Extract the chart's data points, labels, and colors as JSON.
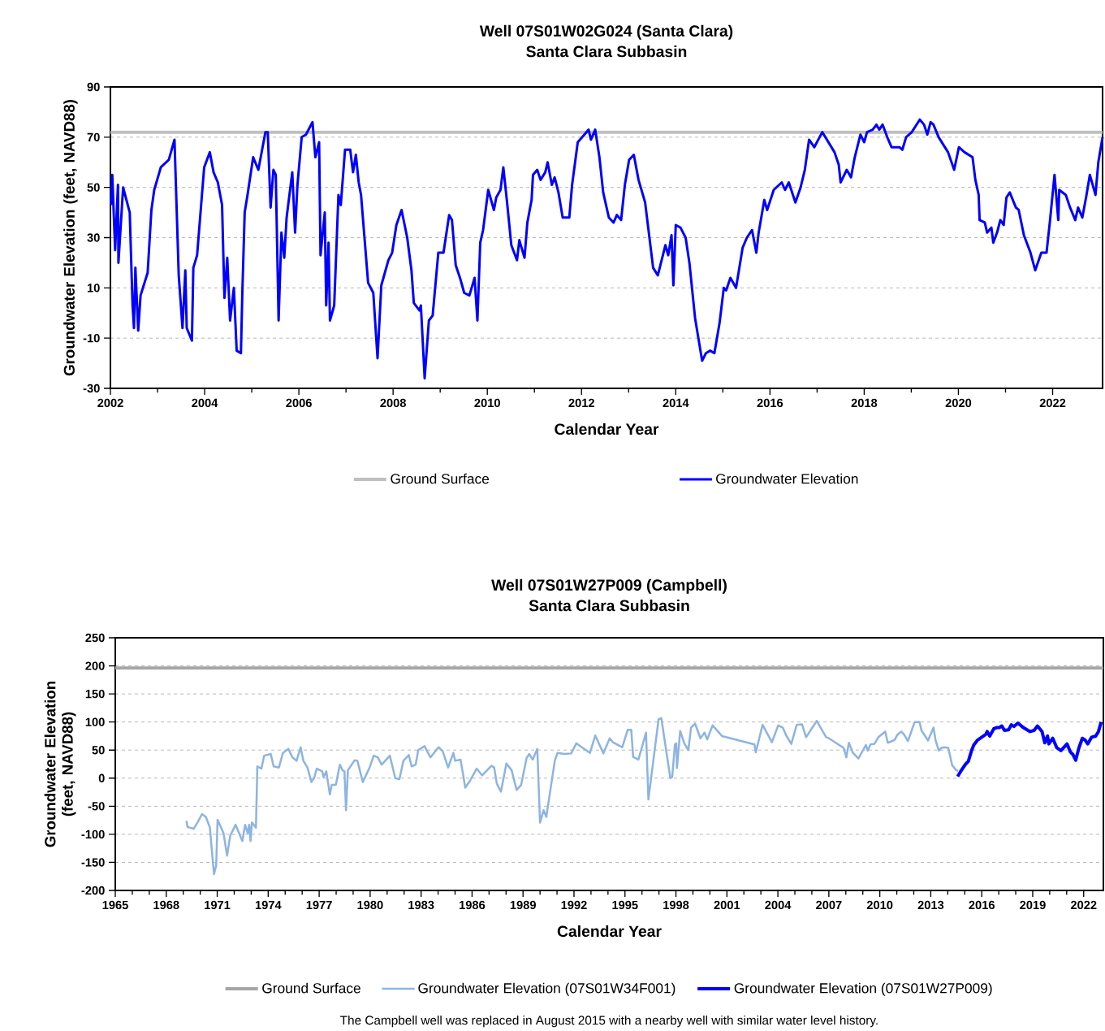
{
  "chart_data": [
    {
      "type": "line",
      "title": "Well 07S01W02G024 (Santa Clara)",
      "subtitle": "Santa Clara Subbasin",
      "xlabel": "Calendar Year",
      "ylabel": "Groundwater Elevation (feet, NAVD88)",
      "xlim": [
        2002,
        2023.06
      ],
      "ylim": [
        -30,
        90
      ],
      "xticks": [
        2002,
        2004,
        2006,
        2008,
        2010,
        2012,
        2014,
        2016,
        2018,
        2020,
        2022
      ],
      "yticks": [
        -30,
        -10,
        10,
        30,
        50,
        70,
        90
      ],
      "grid": "y",
      "legend": "bottom",
      "series": [
        {
          "name": "Ground Surface",
          "color": "#bfbfbf",
          "x": [
            2002,
            2023.06
          ],
          "values": [
            72,
            72
          ]
        },
        {
          "name": "Groundwater Elevation",
          "color": "#0000ff",
          "x": [
            2002.01,
            2002.04,
            2002.1,
            2002.16,
            2002.17,
            2002.27,
            2002.41,
            2002.47,
            2002.5,
            2002.53,
            2002.59,
            2002.64,
            2002.79,
            2002.87,
            2002.93,
            2003.07,
            2003.24,
            2003.36,
            2003.45,
            2003.53,
            2003.59,
            2003.62,
            2003.73,
            2003.76,
            2003.84,
            2003.99,
            2004.11,
            2004.19,
            2004.28,
            2004.37,
            2004.42,
            2004.48,
            2004.54,
            2004.62,
            2004.68,
            2004.77,
            2004.8,
            2004.85,
            2004.91,
            2005.03,
            2005.14,
            2005.23,
            2005.29,
            2005.34,
            2005.4,
            2005.46,
            2005.51,
            2005.57,
            2005.63,
            2005.69,
            2005.74,
            2005.86,
            2005.92,
            2005.97,
            2006.06,
            2006.15,
            2006.29,
            2006.35,
            2006.43,
            2006.46,
            2006.55,
            2006.58,
            2006.63,
            2006.66,
            2006.75,
            2006.84,
            2006.89,
            2006.98,
            2007.09,
            2007.15,
            2007.21,
            2007.27,
            2007.32,
            2007.47,
            2007.58,
            2007.67,
            2007.75,
            2007.9,
            2007.98,
            2008.07,
            2008.18,
            2008.3,
            2008.39,
            2008.44,
            2008.56,
            2008.59,
            2008.67,
            2008.76,
            2008.84,
            2008.96,
            2009.07,
            2009.19,
            2009.25,
            2009.33,
            2009.42,
            2009.51,
            2009.62,
            2009.73,
            2009.79,
            2009.85,
            2009.91,
            2010.02,
            2010.14,
            2010.19,
            2010.28,
            2010.34,
            2010.42,
            2010.51,
            2010.63,
            2010.68,
            2010.79,
            2010.85,
            2010.94,
            2010.97,
            2011.06,
            2011.13,
            2011.23,
            2011.28,
            2011.37,
            2011.43,
            2011.51,
            2011.6,
            2011.74,
            2011.8,
            2011.92,
            2012.06,
            2012.15,
            2012.2,
            2012.29,
            2012.38,
            2012.46,
            2012.58,
            2012.68,
            2012.75,
            2012.84,
            2012.92,
            2013.01,
            2013.11,
            2013.21,
            2013.35,
            2013.52,
            2013.62,
            2013.78,
            2013.84,
            2013.91,
            2013.95,
            2014.0,
            2014.1,
            2014.21,
            2014.29,
            2014.41,
            2014.56,
            2014.64,
            2014.73,
            2014.82,
            2014.93,
            2015.02,
            2015.07,
            2015.16,
            2015.28,
            2015.42,
            2015.51,
            2015.62,
            2015.71,
            2015.76,
            2015.88,
            2015.94,
            2016.08,
            2016.25,
            2016.32,
            2016.4,
            2016.54,
            2016.65,
            2016.74,
            2016.83,
            2016.94,
            2017.11,
            2017.37,
            2017.46,
            2017.5,
            2017.63,
            2017.72,
            2017.8,
            2017.92,
            2018.0,
            2018.06,
            2018.18,
            2018.26,
            2018.32,
            2018.39,
            2018.49,
            2018.58,
            2018.75,
            2018.81,
            2018.89,
            2019.01,
            2019.18,
            2019.27,
            2019.34,
            2019.41,
            2019.47,
            2019.58,
            2019.78,
            2019.91,
            2020.01,
            2020.13,
            2020.3,
            2020.36,
            2020.43,
            2020.45,
            2020.56,
            2020.61,
            2020.7,
            2020.74,
            2020.82,
            2020.89,
            2020.96,
            2021.02,
            2021.09,
            2021.22,
            2021.28,
            2021.39,
            2021.53,
            2021.63,
            2021.76,
            2021.87,
            2021.94,
            2022.04,
            2022.12,
            2022.14,
            2022.28,
            2022.37,
            2022.48,
            2022.54,
            2022.63,
            2022.71,
            2022.79,
            2022.91,
            2022.97,
            2023.06
          ],
          "values": [
            43,
            55,
            25,
            51,
            20,
            50,
            40,
            3,
            -6,
            18,
            -7,
            7,
            16,
            41,
            49,
            58,
            61,
            69,
            15,
            -6,
            17,
            -6,
            -11,
            18,
            23,
            58,
            64,
            56,
            52,
            43,
            6,
            22,
            -3,
            10,
            -15,
            -16,
            8,
            40,
            47,
            62,
            57,
            66,
            72,
            72,
            42,
            57,
            55,
            -3,
            32,
            22,
            38,
            56,
            32,
            51,
            70,
            71,
            76,
            62,
            68,
            23,
            40,
            3,
            28,
            -3,
            3,
            47,
            43,
            65,
            65,
            56,
            63,
            52,
            47,
            12,
            8,
            -18,
            11,
            21,
            24,
            35,
            41,
            30,
            17,
            4,
            1,
            3,
            -26,
            -3,
            -1,
            24,
            24,
            39,
            37,
            19,
            14,
            8,
            7,
            14,
            -3,
            28,
            33,
            49,
            41,
            46,
            49,
            58,
            44,
            27,
            21,
            29,
            22,
            36,
            45,
            55,
            57,
            53,
            56,
            60,
            51,
            54,
            48,
            38,
            38,
            51,
            68,
            71,
            73,
            69,
            73,
            62,
            48,
            38,
            36,
            39,
            37,
            51,
            61,
            63,
            53,
            44,
            18,
            15,
            27,
            23,
            31,
            11,
            35,
            34,
            30,
            20,
            -2,
            -19,
            -16,
            -15,
            -16,
            -4,
            10,
            9,
            14,
            10,
            26,
            30,
            33,
            24,
            32,
            45,
            41,
            49,
            52,
            49,
            52,
            44,
            50,
            57,
            69,
            66,
            72,
            64,
            59,
            52,
            57,
            54,
            62,
            71,
            68,
            72,
            73,
            75,
            73,
            75,
            70,
            66,
            66,
            65,
            70,
            72,
            77,
            75,
            71,
            76,
            75,
            70,
            64,
            57,
            66,
            64,
            62,
            53,
            47,
            37,
            36,
            32,
            34,
            28,
            32,
            37,
            35,
            46,
            48,
            42,
            41,
            31,
            24,
            17,
            24,
            24,
            36,
            55,
            37,
            49,
            47,
            42,
            37,
            42,
            38,
            46,
            55,
            47,
            60,
            70
          ]
        }
      ]
    },
    {
      "type": "line",
      "title": "Well 07S01W27P009 (Campbell)",
      "subtitle": "Santa Clara Subbasin",
      "xlabel": "Calendar Year",
      "ylabel": "Groundwater Elevation (feet, NAVD88)",
      "xlim": [
        1965,
        2023.16
      ],
      "ylim": [
        -200,
        250
      ],
      "xticks": [
        1965,
        1968,
        1971,
        1974,
        1977,
        1980,
        1983,
        1986,
        1989,
        1992,
        1995,
        1998,
        2001,
        2004,
        2007,
        2010,
        2013,
        2016,
        2019,
        2022
      ],
      "yticks": [
        -200,
        -150,
        -100,
        -50,
        0,
        50,
        100,
        150,
        200,
        250
      ],
      "grid": "y",
      "legend": "bottom",
      "annotations": [
        "The Campbell well was replaced in August 2015 with a nearby well with similar water level history."
      ],
      "series": [
        {
          "name": "Ground Surface",
          "color": "#a6a6a6",
          "x": [
            1965,
            2023.16
          ],
          "values": [
            196,
            196
          ]
        },
        {
          "name": "Groundwater Elevation (07S01W34F001)",
          "color": "#8db4e2",
          "x": [
            1969.19,
            1969.25,
            1969.62,
            1969.86,
            1970.1,
            1970.33,
            1970.57,
            1970.65,
            1970.81,
            1970.94,
            1971.02,
            1971.37,
            1971.58,
            1971.77,
            1972.08,
            1972.48,
            1972.64,
            1972.8,
            1972.88,
            1972.96,
            1973.04,
            1973.28,
            1973.36,
            1973.6,
            1973.76,
            1974.15,
            1974.32,
            1974.63,
            1974.87,
            1975.19,
            1975.43,
            1975.67,
            1975.91,
            1976.07,
            1976.31,
            1976.54,
            1976.7,
            1976.86,
            1977.18,
            1977.26,
            1977.42,
            1977.63,
            1977.74,
            1977.98,
            1978.22,
            1978.38,
            1978.49,
            1978.58,
            1978.69,
            1979.09,
            1979.25,
            1979.57,
            1979.97,
            1980.21,
            1980.45,
            1980.68,
            1981.16,
            1981.48,
            1981.72,
            1981.96,
            1982.28,
            1982.44,
            1982.68,
            1982.83,
            1983.2,
            1983.55,
            1984.03,
            1984.27,
            1984.59,
            1984.9,
            1985.0,
            1985.32,
            1985.48,
            1985.6,
            1985.87,
            1986.27,
            1986.59,
            1987.14,
            1987.3,
            1987.46,
            1987.7,
            1988.02,
            1988.33,
            1988.62,
            1988.89,
            1989.21,
            1989.37,
            1989.57,
            1989.84,
            1990.0,
            1990.21,
            1990.37,
            1990.87,
            1991.03,
            1991.43,
            1991.83,
            1992.14,
            1992.94,
            1993.25,
            1993.73,
            1994.1,
            1994.29,
            1994.84,
            1995.16,
            1995.37,
            1995.48,
            1995.79,
            1996.24,
            1996.38,
            1996.98,
            1997.14,
            1997.67,
            1997.78,
            1997.94,
            1998.02,
            1998.06,
            1998.25,
            1998.49,
            1998.73,
            1998.89,
            1999.13,
            1999.44,
            1999.68,
            1999.84,
            2000.16,
            2000.71,
            2002.62,
            2002.7,
            2003.1,
            2003.65,
            2004.02,
            2004.29,
            2004.49,
            2004.79,
            2005.11,
            2005.42,
            2005.66,
            2006.29,
            2006.84,
            2007.0,
            2007.87,
            2008.03,
            2008.18,
            2008.42,
            2008.74,
            2009.18,
            2009.29,
            2009.45,
            2009.68,
            2009.92,
            2010.32,
            2010.47,
            2010.87,
            2011.03,
            2011.26,
            2011.42,
            2011.66,
            2012.05,
            2012.34,
            2012.45,
            2012.84,
            2013.16,
            2013.28,
            2013.47,
            2013.63,
            2013.79,
            2014.03,
            2014.26,
            2014.5,
            2014.61
          ],
          "values": [
            -76,
            -87,
            -90,
            -78,
            -64,
            -69,
            -88,
            -117,
            -171,
            -155,
            -74,
            -98,
            -138,
            -102,
            -83,
            -112,
            -83,
            -98,
            -83,
            -112,
            -79,
            -88,
            21,
            17,
            40,
            43,
            21,
            19,
            45,
            52,
            37,
            31,
            55,
            31,
            19,
            -7,
            0,
            17,
            12,
            2,
            12,
            -29,
            -12,
            -12,
            24,
            14,
            12,
            -57,
            14,
            32,
            31,
            -7,
            19,
            40,
            37,
            24,
            40,
            0,
            -2,
            31,
            41,
            21,
            24,
            50,
            57,
            37,
            55,
            48,
            19,
            45,
            31,
            33,
            5,
            -17,
            -5,
            17,
            5,
            22,
            19,
            -10,
            -24,
            26,
            14,
            -21,
            -12,
            36,
            43,
            33,
            52,
            -79,
            -57,
            -69,
            31,
            45,
            43,
            44,
            62,
            45,
            76,
            44,
            71,
            64,
            55,
            86,
            86,
            38,
            33,
            81,
            -38,
            105,
            107,
            0,
            2,
            60,
            62,
            18,
            84,
            62,
            50,
            90,
            97,
            71,
            81,
            69,
            94,
            75,
            60,
            46,
            95,
            64,
            94,
            90,
            76,
            61,
            95,
            96,
            73,
            102,
            73,
            71,
            54,
            37,
            63,
            45,
            35,
            59,
            49,
            60,
            61,
            73,
            83,
            63,
            68,
            77,
            83,
            78,
            66,
            100,
            100,
            85,
            67,
            90,
            68,
            49,
            54,
            55,
            54,
            23,
            14,
            13
          ]
        },
        {
          "name": "Groundwater Elevation (07S01W27P009)",
          "color": "#0000ff",
          "x": [
            2014.58,
            2014.74,
            2014.89,
            2015.05,
            2015.21,
            2015.4,
            2015.53,
            2015.76,
            2016.0,
            2016.24,
            2016.32,
            2016.47,
            2016.71,
            2016.87,
            2017.03,
            2017.18,
            2017.34,
            2017.58,
            2017.74,
            2017.89,
            2018.13,
            2018.45,
            2018.84,
            2019.08,
            2019.28,
            2019.55,
            2019.71,
            2019.87,
            2019.95,
            2020.18,
            2020.42,
            2020.66,
            2021.02,
            2021.21,
            2021.37,
            2021.53,
            2021.72,
            2021.92,
            2022.08,
            2022.24,
            2022.47,
            2022.71,
            2022.87,
            2023.03
          ],
          "values": [
            3,
            11,
            18,
            25,
            30,
            49,
            59,
            68,
            73,
            78,
            83,
            75,
            88,
            90,
            90,
            93,
            85,
            86,
            95,
            92,
            98,
            90,
            83,
            85,
            93,
            83,
            63,
            75,
            61,
            71,
            54,
            49,
            61,
            47,
            42,
            32,
            54,
            71,
            68,
            61,
            73,
            75,
            83,
            100
          ]
        }
      ]
    }
  ]
}
